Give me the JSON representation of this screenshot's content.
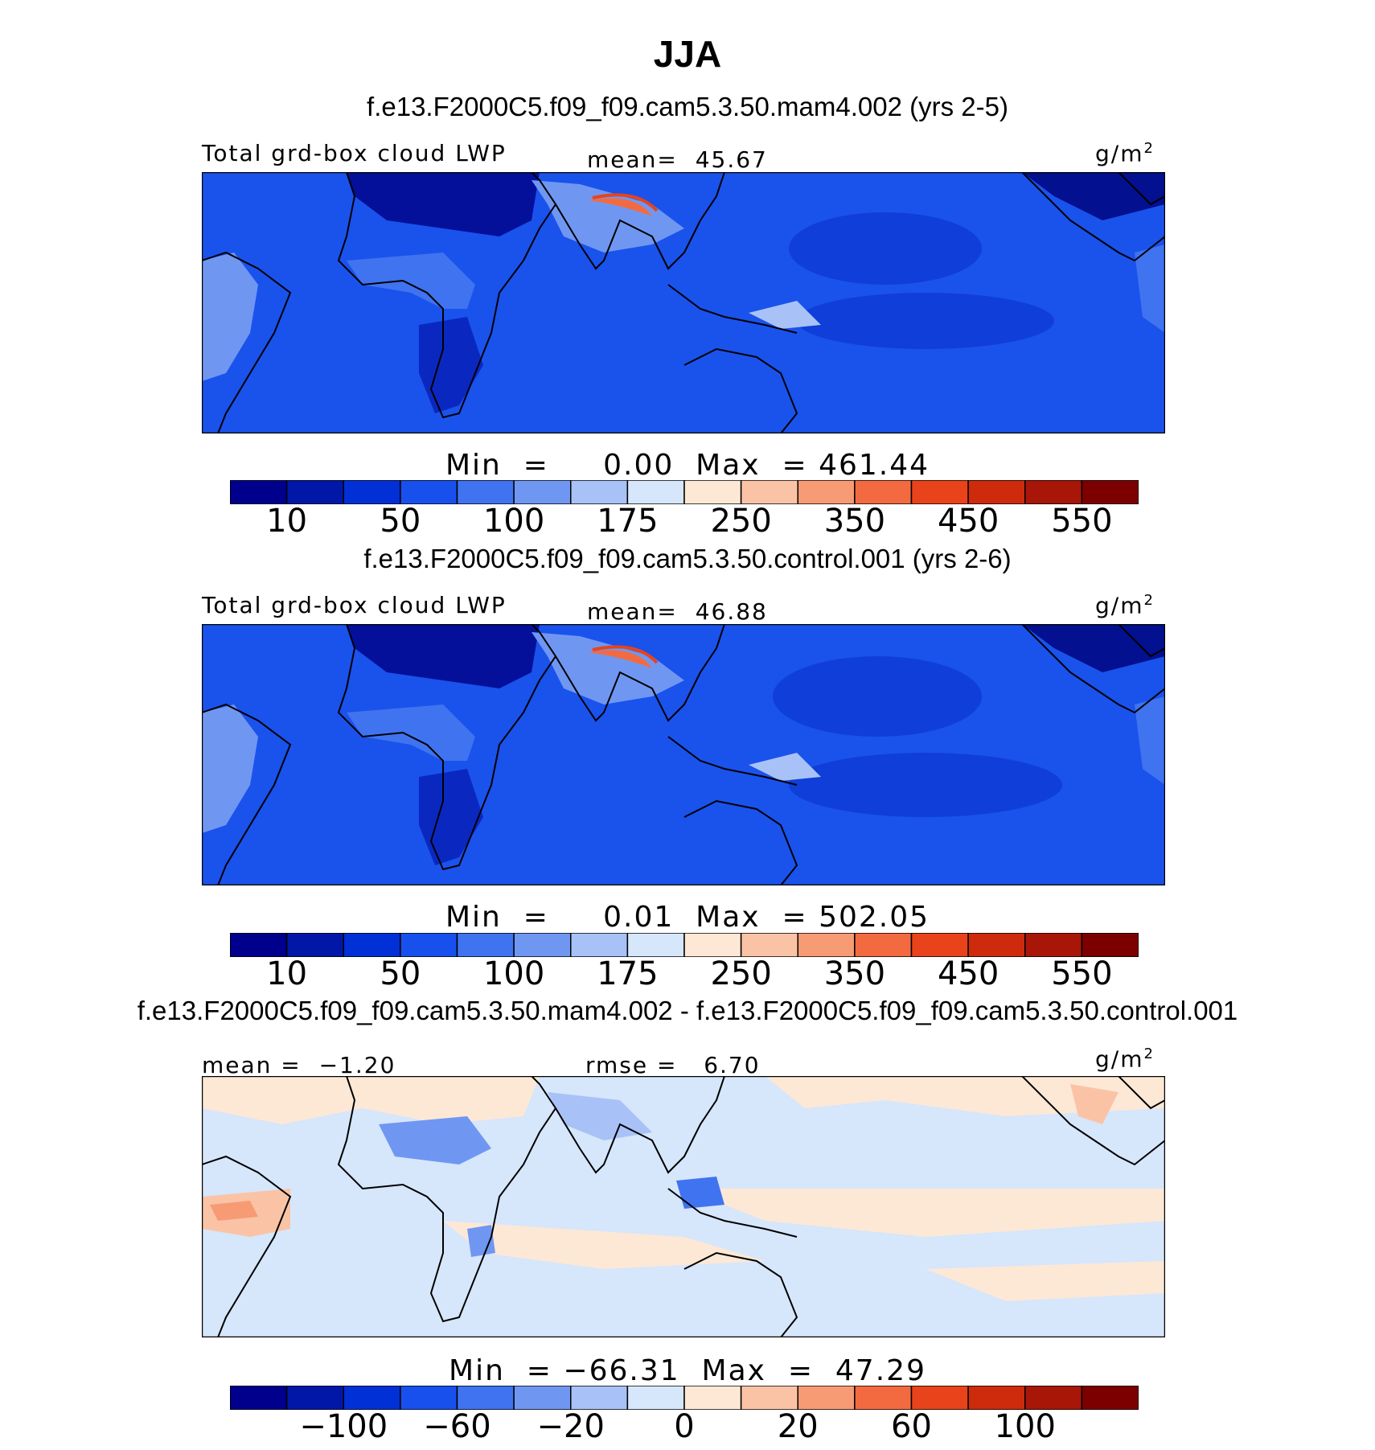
{
  "page": {
    "title": "JJA"
  },
  "colors": {
    "lwp_scale": [
      "#00008c",
      "#0017a8",
      "#0030d6",
      "#1850ee",
      "#3f73f0",
      "#6f97f2",
      "#a8c2f7",
      "#d6e6fb",
      "#fde8d6",
      "#fbc3a6",
      "#f79b74",
      "#f46a40",
      "#e8431a",
      "#cd2b0c",
      "#a81607",
      "#7c0000"
    ],
    "diff_scale": [
      "#00008c",
      "#0017a8",
      "#0030d6",
      "#1850ee",
      "#3f73f0",
      "#6f97f2",
      "#a8c2f7",
      "#d6e6fb",
      "#fde8d6",
      "#fbc3a6",
      "#f79b74",
      "#f46a40",
      "#e8431a",
      "#cd2b0c",
      "#a81607",
      "#7c0000"
    ]
  },
  "chart_data": [
    {
      "type": "heatmap",
      "title": "f.e13.F2000C5.f09_f09.cam5.3.50.mam4.002 (yrs 2-5)",
      "variable": "Total grd-box cloud LWP",
      "units": "g/m",
      "units_sup": "2",
      "stat_label": "mean=",
      "stat_value": "45.67",
      "min_label": "Min  =",
      "min_value": "0.00",
      "max_label": "Max  =",
      "max_value": "461.44",
      "colorbar_ticks": [
        "10",
        "50",
        "100",
        "175",
        "250",
        "350",
        "450",
        "550"
      ]
    },
    {
      "type": "heatmap",
      "title": "f.e13.F2000C5.f09_f09.cam5.3.50.control.001 (yrs 2-6)",
      "variable": "Total grd-box cloud LWP",
      "units": "g/m",
      "units_sup": "2",
      "stat_label": "mean=",
      "stat_value": "46.88",
      "min_label": "Min  =",
      "min_value": "0.01",
      "max_label": "Max  =",
      "max_value": "502.05",
      "colorbar_ticks": [
        "10",
        "50",
        "100",
        "175",
        "250",
        "350",
        "450",
        "550"
      ]
    },
    {
      "type": "heatmap",
      "title": "f.e13.F2000C5.f09_f09.cam5.3.50.mam4.002 - f.e13.F2000C5.f09_f09.cam5.3.50.control.001",
      "variable": "",
      "units": "g/m",
      "units_sup": "2",
      "stat_label": "mean  =",
      "stat_value": "−1.20",
      "rmse_label": "rmse  =",
      "rmse_value": "6.70",
      "min_label": "Min  =",
      "min_value": "−66.31",
      "max_label": "Max  =",
      "max_value": "47.29",
      "colorbar_ticks": [
        "−100",
        "−60",
        "−20",
        "0",
        "20",
        "60",
        "100"
      ]
    }
  ]
}
